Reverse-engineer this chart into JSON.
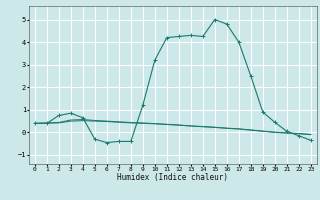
{
  "title": "",
  "xlabel": "Humidex (Indice chaleur)",
  "ylabel": "",
  "bg_color": "#cce8e8",
  "grid_color": "#ffffff",
  "line_color": "#1a7a6e",
  "x_data": [
    0,
    1,
    2,
    3,
    4,
    5,
    6,
    7,
    8,
    9,
    10,
    11,
    12,
    13,
    14,
    15,
    16,
    17,
    18,
    19,
    20,
    21,
    22,
    23
  ],
  "y_main": [
    0.4,
    0.4,
    0.75,
    0.85,
    0.65,
    -0.3,
    -0.45,
    -0.4,
    -0.4,
    1.2,
    3.2,
    4.2,
    4.25,
    4.3,
    4.25,
    5.0,
    4.8,
    4.0,
    2.5,
    0.9,
    0.45,
    0.05,
    -0.15,
    -0.35
  ],
  "y_line1": [
    0.4,
    0.41,
    0.42,
    0.5,
    0.52,
    0.5,
    0.48,
    0.45,
    0.42,
    0.4,
    0.38,
    0.35,
    0.32,
    0.28,
    0.25,
    0.22,
    0.18,
    0.15,
    0.1,
    0.05,
    0.0,
    -0.03,
    -0.06,
    -0.1
  ],
  "y_line2": [
    0.4,
    0.42,
    0.44,
    0.55,
    0.57,
    0.53,
    0.5,
    0.47,
    0.44,
    0.42,
    0.39,
    0.36,
    0.33,
    0.29,
    0.26,
    0.23,
    0.19,
    0.16,
    0.11,
    0.06,
    0.01,
    -0.02,
    -0.05,
    -0.09
  ],
  "ylim": [
    -1.4,
    5.6
  ],
  "xlim": [
    -0.5,
    23.5
  ],
  "yticks": [
    -1,
    0,
    1,
    2,
    3,
    4,
    5
  ],
  "xticks": [
    0,
    1,
    2,
    3,
    4,
    5,
    6,
    7,
    8,
    9,
    10,
    11,
    12,
    13,
    14,
    15,
    16,
    17,
    18,
    19,
    20,
    21,
    22,
    23
  ]
}
